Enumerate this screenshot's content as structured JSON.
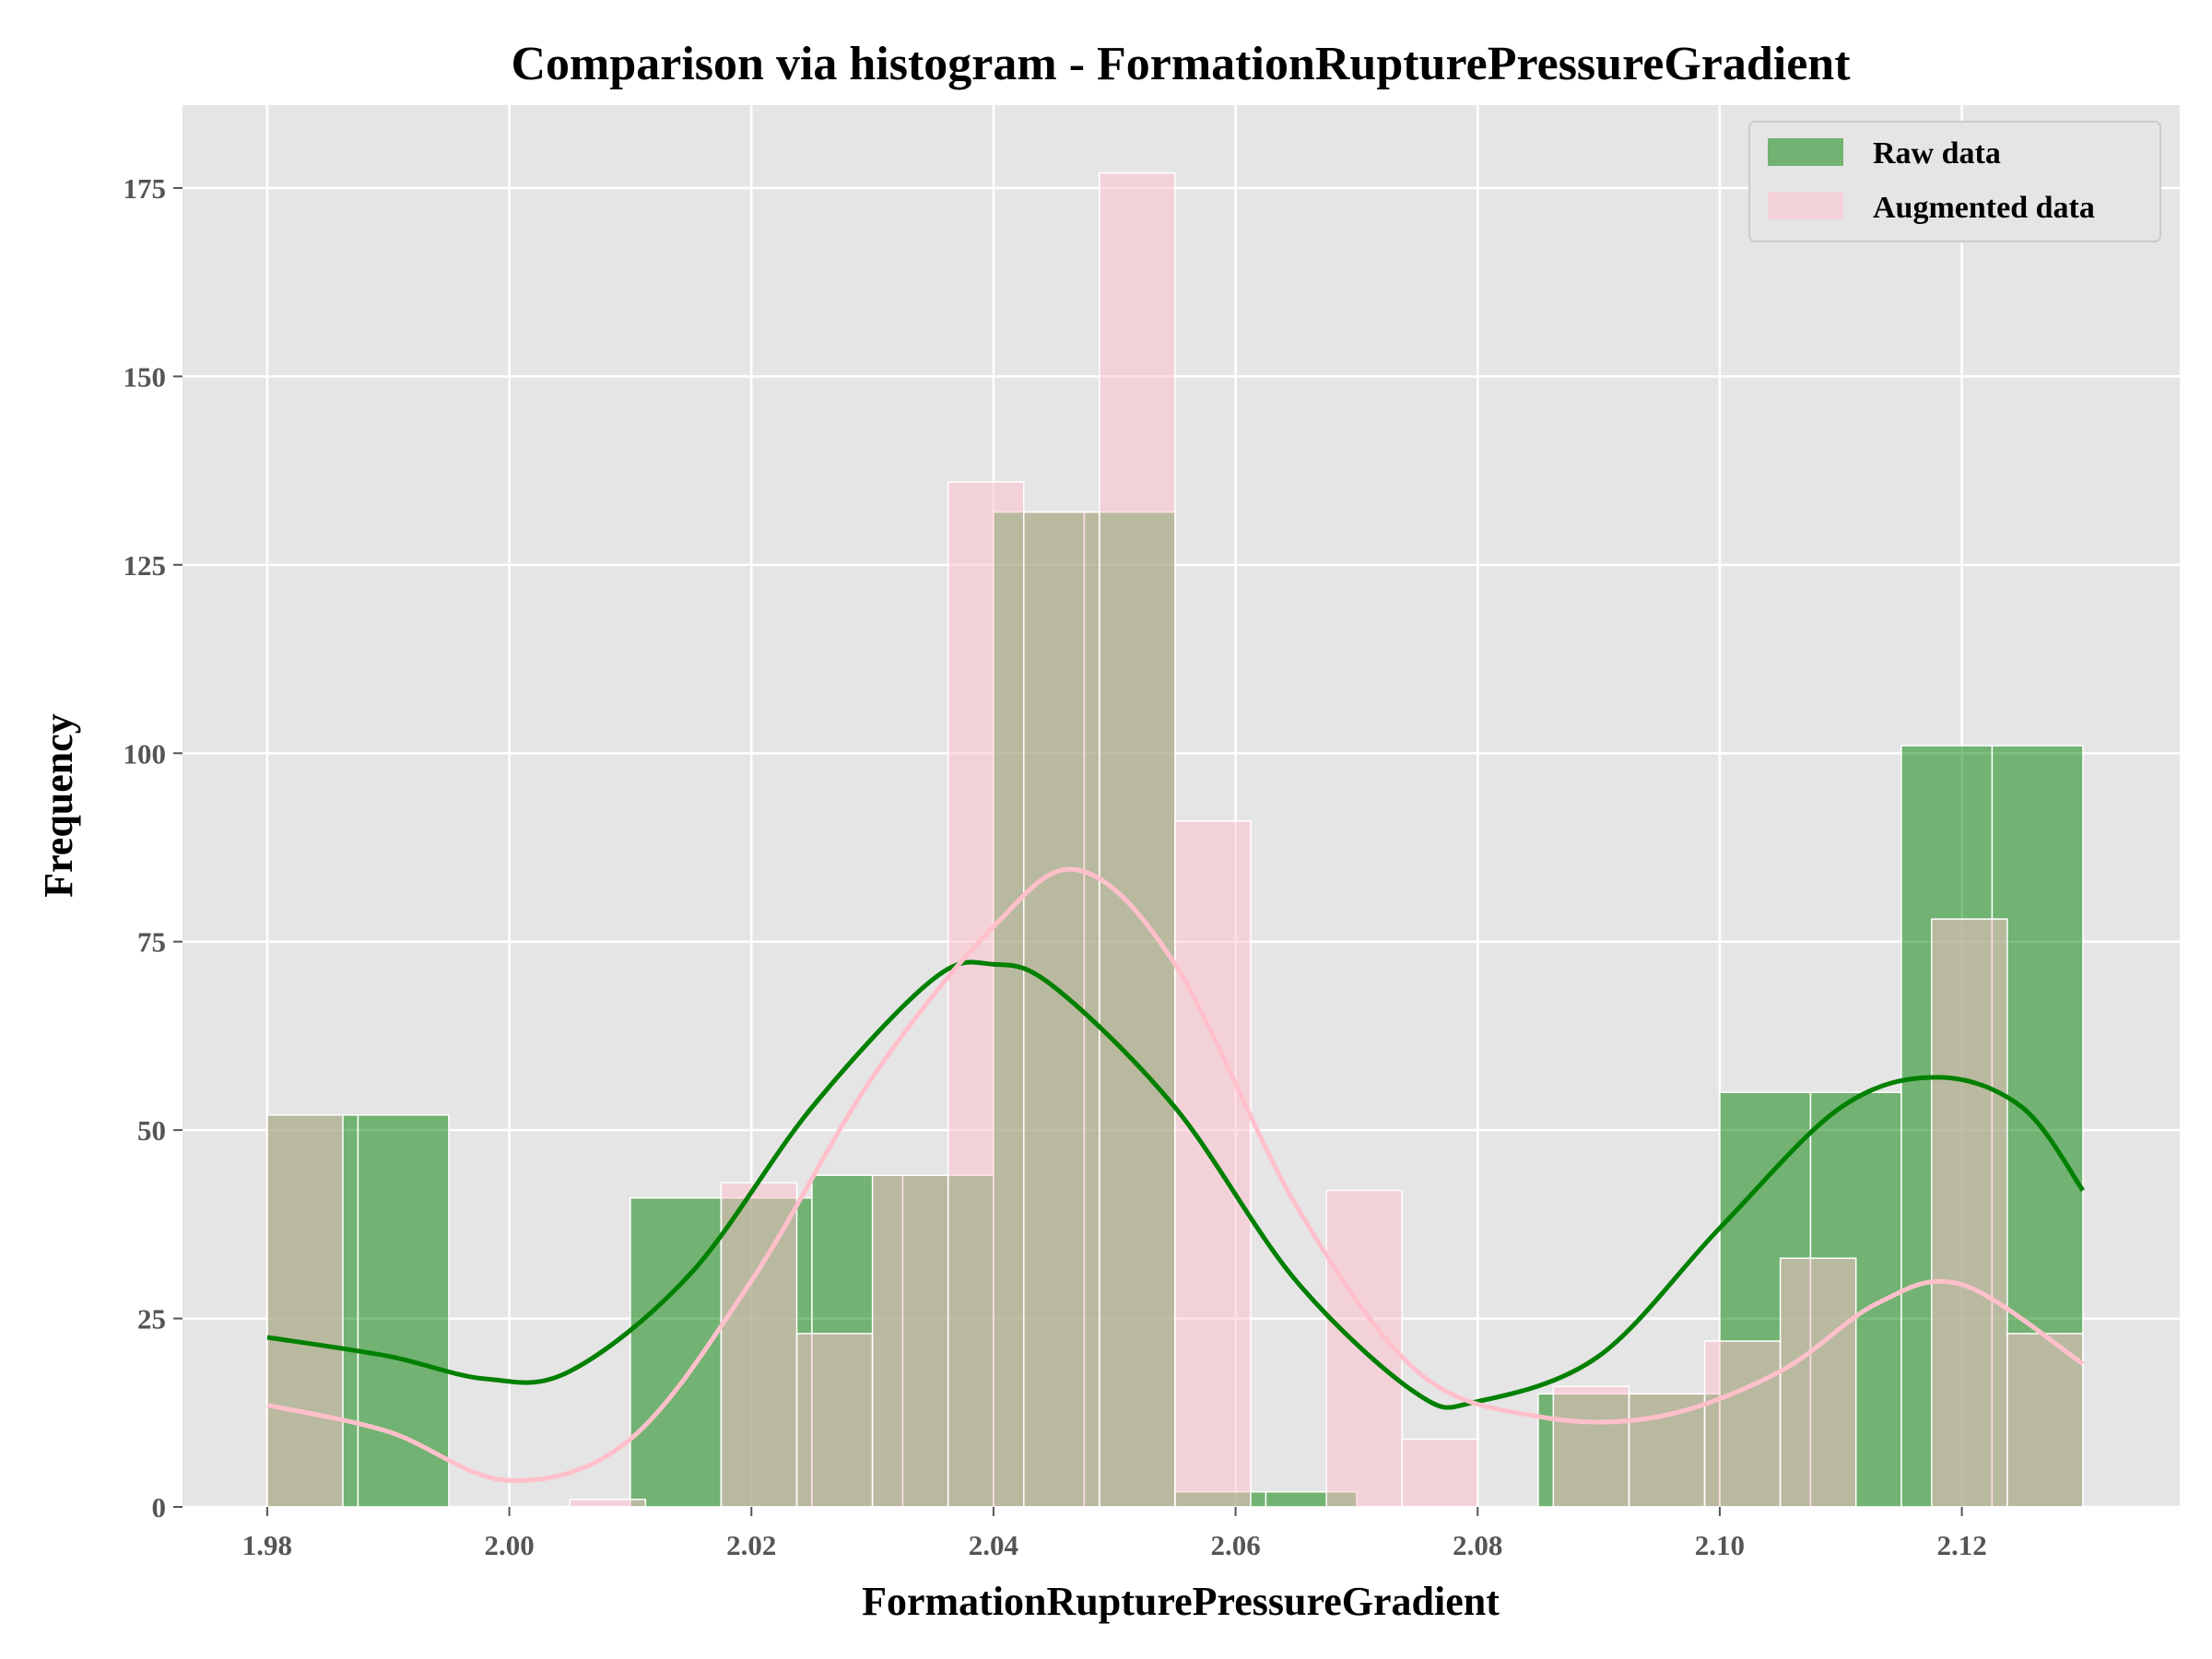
{
  "chart_data": {
    "type": "bar",
    "title": "Comparison via histogram - FormationRupturePressureGradient",
    "xlabel": "FormationRupturePressureGradient",
    "ylabel": "Frequency",
    "xlim": [
      1.973,
      2.138
    ],
    "ylim": [
      0,
      186
    ],
    "x_ticks": [
      "1.98",
      "2.00",
      "2.02",
      "2.04",
      "2.06",
      "2.08",
      "2.10",
      "2.12"
    ],
    "x_tick_values": [
      1.98,
      2.0,
      2.02,
      2.04,
      2.06,
      2.08,
      2.1,
      2.12
    ],
    "y_ticks": [
      "0",
      "25",
      "50",
      "75",
      "100",
      "125",
      "150",
      "175"
    ],
    "y_tick_values": [
      0,
      25,
      50,
      75,
      100,
      125,
      150,
      175
    ],
    "grid": true,
    "legend_position": "top-right",
    "series": [
      {
        "name": "Raw data",
        "color": "#008000",
        "bins": [
          {
            "x0": 1.98,
            "x1": 1.9875,
            "count": 52
          },
          {
            "x0": 1.9875,
            "x1": 1.995,
            "count": 52
          },
          {
            "x0": 2.01,
            "x1": 2.0175,
            "count": 41
          },
          {
            "x0": 2.0175,
            "x1": 2.025,
            "count": 41
          },
          {
            "x0": 2.025,
            "x1": 2.0325,
            "count": 44
          },
          {
            "x0": 2.0325,
            "x1": 2.04,
            "count": 44
          },
          {
            "x0": 2.04,
            "x1": 2.0475,
            "count": 132
          },
          {
            "x0": 2.0475,
            "x1": 2.055,
            "count": 132
          },
          {
            "x0": 2.055,
            "x1": 2.0625,
            "count": 2
          },
          {
            "x0": 2.0625,
            "x1": 2.07,
            "count": 2
          },
          {
            "x0": 2.085,
            "x1": 2.0925,
            "count": 15
          },
          {
            "x0": 2.0925,
            "x1": 2.1,
            "count": 15
          },
          {
            "x0": 2.1,
            "x1": 2.1075,
            "count": 55
          },
          {
            "x0": 2.1075,
            "x1": 2.115,
            "count": 55
          },
          {
            "x0": 2.115,
            "x1": 2.1225,
            "count": 101
          },
          {
            "x0": 2.1225,
            "x1": 2.13,
            "count": 101
          }
        ],
        "kde": [
          [
            1.98,
            22.5
          ],
          [
            1.99,
            20
          ],
          [
            1.998,
            17
          ],
          [
            2.005,
            18
          ],
          [
            2.015,
            31
          ],
          [
            2.025,
            53
          ],
          [
            2.035,
            70
          ],
          [
            2.04,
            72
          ],
          [
            2.045,
            69
          ],
          [
            2.055,
            53
          ],
          [
            2.065,
            30
          ],
          [
            2.075,
            15
          ],
          [
            2.08,
            14
          ],
          [
            2.09,
            20
          ],
          [
            2.1,
            37
          ],
          [
            2.11,
            53
          ],
          [
            2.118,
            57
          ],
          [
            2.125,
            53
          ],
          [
            2.13,
            42
          ]
        ]
      },
      {
        "name": "Augmented data",
        "color": "#FFC0CB",
        "bins": [
          {
            "x0": 1.98,
            "x1": 1.98625,
            "count": 52
          },
          {
            "x0": 2.005,
            "x1": 2.01125,
            "count": 1
          },
          {
            "x0": 2.0175,
            "x1": 2.02375,
            "count": 43
          },
          {
            "x0": 2.02375,
            "x1": 2.03,
            "count": 23
          },
          {
            "x0": 2.03,
            "x1": 2.03625,
            "count": 44
          },
          {
            "x0": 2.03625,
            "x1": 2.0425,
            "count": 136
          },
          {
            "x0": 2.0425,
            "x1": 2.04875,
            "count": 132
          },
          {
            "x0": 2.04875,
            "x1": 2.055,
            "count": 177
          },
          {
            "x0": 2.055,
            "x1": 2.06125,
            "count": 91
          },
          {
            "x0": 2.0675,
            "x1": 2.07375,
            "count": 42
          },
          {
            "x0": 2.07375,
            "x1": 2.08,
            "count": 9
          },
          {
            "x0": 2.08625,
            "x1": 2.0925,
            "count": 16
          },
          {
            "x0": 2.0925,
            "x1": 2.09875,
            "count": 15
          },
          {
            "x0": 2.09875,
            "x1": 2.105,
            "count": 22
          },
          {
            "x0": 2.105,
            "x1": 2.11125,
            "count": 33
          },
          {
            "x0": 2.1175,
            "x1": 2.12375,
            "count": 78
          },
          {
            "x0": 2.12375,
            "x1": 2.13,
            "count": 23
          }
        ],
        "kde": [
          [
            1.98,
            13.5
          ],
          [
            1.99,
            10
          ],
          [
            2.0,
            3.5
          ],
          [
            2.01,
            9
          ],
          [
            2.02,
            30
          ],
          [
            2.03,
            57
          ],
          [
            2.04,
            77
          ],
          [
            2.047,
            84.5
          ],
          [
            2.055,
            72
          ],
          [
            2.065,
            40
          ],
          [
            2.075,
            18
          ],
          [
            2.085,
            12
          ],
          [
            2.095,
            12
          ],
          [
            2.105,
            18
          ],
          [
            2.113,
            27
          ],
          [
            2.12,
            29.5
          ],
          [
            2.13,
            19
          ]
        ]
      }
    ]
  }
}
